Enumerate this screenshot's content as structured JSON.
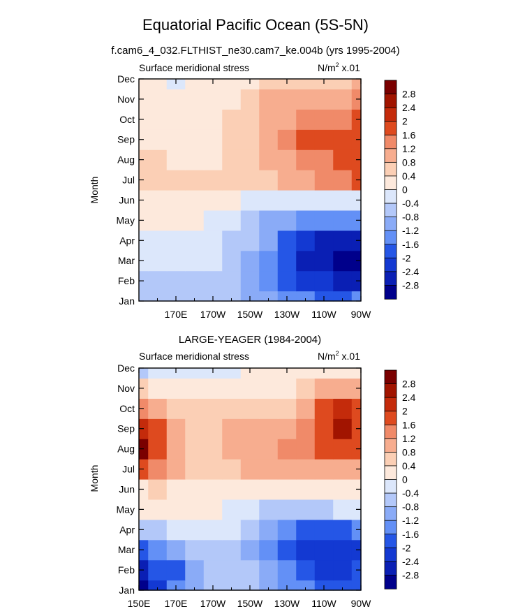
{
  "figure": {
    "title": "Equatorial Pacific Ocean (5S-5N)",
    "subtitle": "f.cam6_4_032.FLTHIST_ne30.cam7_ke.004b (yrs 1995-2004)",
    "colors": {
      "levels_low_to_high": [
        "#00008b",
        "#0a1fb4",
        "#1339d2",
        "#2556e6",
        "#3f73f0",
        "#6390f6",
        "#8aabf7",
        "#b3c8f9",
        "#dce7fb",
        "#fde9dc",
        "#fbcfb5",
        "#f7ad8f",
        "#f08a69",
        "#e9683f",
        "#de4a1f",
        "#c42b0b",
        "#a11400",
        "#7a0000"
      ]
    }
  },
  "chart_data": [
    {
      "type": "heatmap",
      "panel_title": "",
      "left_string": "Surface meridional stress",
      "right_string": "N/m",
      "right_string_sup": "2",
      "right_string_suffix": " x.01",
      "ylabel": "Month",
      "y_ticks": [
        "Jan",
        "Feb",
        "Mar",
        "Apr",
        "May",
        "Jun",
        "Jul",
        "Aug",
        "Sep",
        "Oct",
        "Nov",
        "Dec"
      ],
      "x_ticks": [
        "170E",
        "170W",
        "150W",
        "130W",
        "110W",
        "90W"
      ],
      "x_tick_lon": [
        170,
        190,
        210,
        230,
        250,
        270
      ],
      "x_range": [
        150,
        270
      ],
      "contour_levels": [
        -2.8,
        -2.4,
        -2,
        -1.6,
        -1.2,
        -0.8,
        -0.4,
        0,
        0.4,
        0.8,
        1.2,
        1.6,
        2,
        2.4,
        2.8
      ],
      "x_lon": [
        150,
        160,
        170,
        180,
        190,
        200,
        210,
        220,
        230,
        240,
        250,
        260,
        270
      ],
      "months": [
        "Jan",
        "Feb",
        "Mar",
        "Apr",
        "May",
        "Jun",
        "Jul",
        "Aug",
        "Sep",
        "Oct",
        "Nov",
        "Dec"
      ],
      "values": [
        [
          -0.5,
          -0.5,
          -0.6,
          -0.6,
          -0.6,
          -0.7,
          -0.9,
          -1.1,
          -1.3,
          -1.5,
          -1.7,
          -1.7,
          -1.6
        ],
        [
          -0.5,
          -0.5,
          -0.6,
          -0.6,
          -0.6,
          -0.8,
          -1.0,
          -1.4,
          -1.9,
          -2.2,
          -2.4,
          -2.6,
          -2.5
        ],
        [
          -0.3,
          -0.3,
          -0.4,
          -0.4,
          -0.4,
          -0.6,
          -0.9,
          -1.4,
          -2.0,
          -2.5,
          -2.8,
          -3.0,
          -2.9
        ],
        [
          -0.2,
          -0.2,
          -0.2,
          -0.2,
          -0.3,
          -0.5,
          -0.8,
          -1.2,
          -1.7,
          -2.2,
          -2.5,
          -2.7,
          -2.6
        ],
        [
          0.1,
          0.1,
          0.1,
          0.0,
          -0.2,
          -0.4,
          -0.6,
          -0.9,
          -1.2,
          -1.5,
          -1.6,
          -1.5,
          -1.4
        ],
        [
          0.2,
          0.2,
          0.2,
          0.2,
          0.2,
          0.1,
          -0.1,
          -0.3,
          -0.4,
          -0.4,
          -0.3,
          -0.2,
          -0.1
        ],
        [
          0.5,
          0.4,
          0.4,
          0.4,
          0.4,
          0.4,
          0.4,
          0.5,
          0.8,
          1.1,
          1.3,
          1.5,
          1.6
        ],
        [
          0.4,
          0.4,
          0.3,
          0.3,
          0.3,
          0.4,
          0.5,
          0.8,
          1.1,
          1.4,
          1.5,
          1.6,
          1.7
        ],
        [
          0.3,
          0.3,
          0.3,
          0.3,
          0.3,
          0.4,
          0.6,
          1.0,
          1.4,
          1.7,
          1.8,
          1.6,
          1.7
        ],
        [
          0.2,
          0.2,
          0.2,
          0.2,
          0.3,
          0.4,
          0.5,
          0.8,
          1.1,
          1.3,
          1.4,
          1.4,
          1.7
        ],
        [
          0.1,
          0.1,
          0.1,
          0.2,
          0.2,
          0.3,
          0.5,
          0.8,
          1.0,
          1.1,
          1.0,
          0.9,
          1.3
        ],
        [
          0.2,
          0.1,
          -0.1,
          0.0,
          0.1,
          0.2,
          0.3,
          0.4,
          0.5,
          0.6,
          0.6,
          0.6,
          0.9
        ]
      ],
      "colorbar_labels": [
        "2.8",
        "2.4",
        "2",
        "1.6",
        "1.2",
        "0.8",
        "0.4",
        "0",
        "-0.4",
        "-0.8",
        "-1.2",
        "-1.6",
        "-2",
        "-2.4",
        "-2.8"
      ]
    },
    {
      "type": "heatmap",
      "panel_title": "LARGE-YEAGER (1984-2004)",
      "left_string": "Surface meridional stress",
      "right_string": "N/m",
      "right_string_sup": "2",
      "right_string_suffix": " x.01",
      "ylabel": "Month",
      "y_ticks": [
        "Jan",
        "Feb",
        "Mar",
        "Apr",
        "May",
        "Jun",
        "Jul",
        "Aug",
        "Sep",
        "Oct",
        "Nov",
        "Dec"
      ],
      "x_ticks": [
        "150E",
        "170E",
        "170W",
        "150W",
        "130W",
        "110W",
        "90W"
      ],
      "x_tick_lon": [
        150,
        170,
        190,
        210,
        230,
        250,
        270
      ],
      "x_range": [
        150,
        270
      ],
      "contour_levels": [
        -2.8,
        -2.4,
        -2,
        -1.6,
        -1.2,
        -0.8,
        -0.4,
        0,
        0.4,
        0.8,
        1.2,
        1.6,
        2,
        2.4,
        2.8
      ],
      "x_lon": [
        150,
        160,
        170,
        180,
        190,
        200,
        210,
        220,
        230,
        240,
        250,
        260,
        270
      ],
      "months": [
        "Jan",
        "Feb",
        "Mar",
        "Apr",
        "May",
        "Jun",
        "Jul",
        "Aug",
        "Sep",
        "Oct",
        "Nov",
        "Dec"
      ],
      "values": [
        [
          -2.9,
          -2.2,
          -1.4,
          -1.0,
          -0.6,
          -0.6,
          -0.8,
          -1.0,
          -1.3,
          -1.6,
          -1.8,
          -1.9,
          -1.8
        ],
        [
          -2.6,
          -2.0,
          -1.7,
          -1.0,
          -0.8,
          -0.7,
          -0.8,
          -1.1,
          -1.6,
          -2.0,
          -2.1,
          -2.3,
          -2.0
        ],
        [
          -1.8,
          -1.5,
          -1.1,
          -0.8,
          -0.6,
          -0.5,
          -0.9,
          -1.4,
          -1.9,
          -2.1,
          -2.2,
          -2.4,
          -2.1
        ],
        [
          -0.6,
          -0.5,
          -0.3,
          -0.3,
          -0.3,
          -0.3,
          -0.6,
          -1.1,
          -1.5,
          -1.7,
          -1.7,
          -1.7,
          -1.4
        ],
        [
          0.2,
          0.2,
          0.1,
          0.1,
          0.1,
          -0.1,
          -0.3,
          -0.5,
          -0.6,
          -0.6,
          -0.5,
          -0.4,
          -0.3
        ],
        [
          0.3,
          0.4,
          0.3,
          0.3,
          0.2,
          0.2,
          0.2,
          0.2,
          0.2,
          0.2,
          0.2,
          0.2,
          0.2
        ],
        [
          1.8,
          1.3,
          0.8,
          0.5,
          0.4,
          0.6,
          0.8,
          0.8,
          0.8,
          0.8,
          0.9,
          1.0,
          1.0
        ],
        [
          2.8,
          1.8,
          1.1,
          0.7,
          0.6,
          0.9,
          1.0,
          1.1,
          1.4,
          1.3,
          1.6,
          1.8,
          1.6
        ],
        [
          2.1,
          1.6,
          1.1,
          0.7,
          0.5,
          0.8,
          0.9,
          1.0,
          1.0,
          1.2,
          1.9,
          2.4,
          1.9
        ],
        [
          1.2,
          1.1,
          0.7,
          0.5,
          0.4,
          0.5,
          0.6,
          0.6,
          0.5,
          1.0,
          1.8,
          2.0,
          1.6
        ],
        [
          0.4,
          0.3,
          0.3,
          0.3,
          0.2,
          0.2,
          0.2,
          0.1,
          0.1,
          0.4,
          1.0,
          1.1,
          0.9
        ],
        [
          -0.5,
          -0.3,
          -0.2,
          -0.1,
          -0.2,
          -0.1,
          0.1,
          0.3,
          0.3,
          0.2,
          0.1,
          0.0,
          0.0
        ]
      ],
      "colorbar_labels": [
        "2.8",
        "2.4",
        "2",
        "1.6",
        "1.2",
        "0.8",
        "0.4",
        "0",
        "-0.4",
        "-0.8",
        "-1.2",
        "-1.6",
        "-2",
        "-2.4",
        "-2.8"
      ]
    }
  ]
}
